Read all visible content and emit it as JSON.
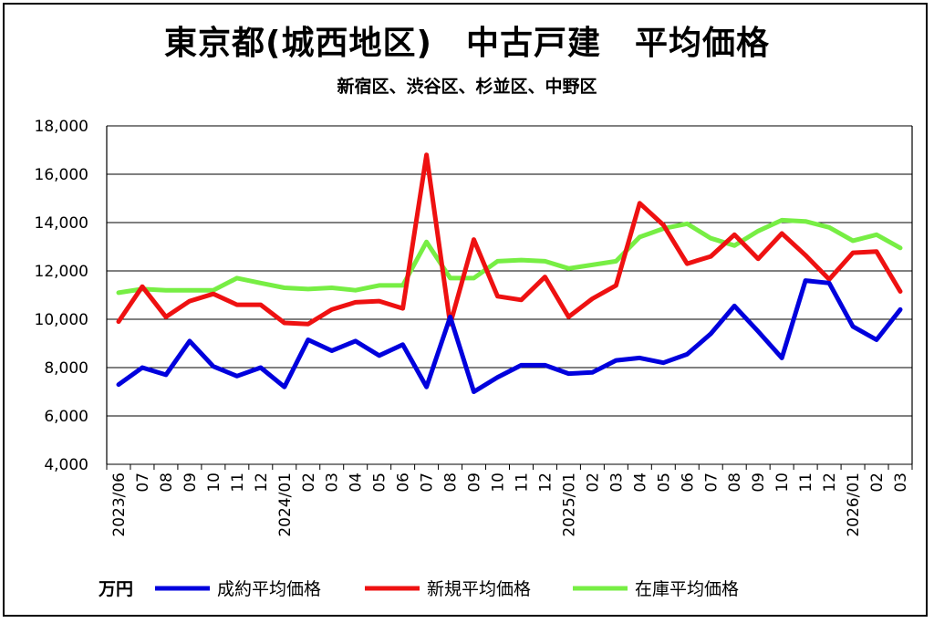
{
  "chart_data": {
    "type": "line",
    "title": "東京都(城西地区)　中古戸建　平均価格",
    "subtitle": "新宿区、渋谷区、杉並区、中野区",
    "unit": "万円",
    "ylim": [
      4000,
      18000
    ],
    "yticks": [
      4000,
      6000,
      8000,
      10000,
      12000,
      14000,
      16000,
      18000
    ],
    "ytick_labels": [
      "4,000",
      "6,000",
      "8,000",
      "10,000",
      "12,000",
      "14,000",
      "16,000",
      "18,000"
    ],
    "grid": true,
    "legend_position": "bottom",
    "x": [
      "2023/06",
      "07",
      "08",
      "09",
      "10",
      "11",
      "12",
      "2024/01",
      "02",
      "03",
      "04",
      "05",
      "06",
      "07",
      "08",
      "09",
      "10",
      "11",
      "12",
      "2025/01",
      "02",
      "03",
      "04",
      "05",
      "06",
      "07",
      "08",
      "09",
      "10",
      "11",
      "12",
      "2026/01",
      "02",
      "03"
    ],
    "series": [
      {
        "name": "成約平均価格",
        "color": "#0000dd",
        "values": [
          7300,
          8000,
          7700,
          9100,
          8050,
          7650,
          8000,
          7200,
          9150,
          8700,
          9100,
          8500,
          8950,
          7200,
          10100,
          7000,
          7600,
          8100,
          8100,
          7750,
          7800,
          8300,
          8400,
          8200,
          8550,
          9400,
          10550,
          9500,
          8400,
          11600,
          11500,
          9700,
          9150,
          10400
        ]
      },
      {
        "name": "新規平均価格",
        "color": "#ee1111",
        "values": [
          9900,
          11350,
          10100,
          10750,
          11050,
          10600,
          10600,
          9850,
          9800,
          10400,
          10700,
          10750,
          10450,
          16800,
          9800,
          13300,
          10950,
          10800,
          11750,
          10100,
          10850,
          11400,
          14800,
          13900,
          12300,
          12600,
          13500,
          12500,
          13550,
          12650,
          11650,
          12750,
          12800,
          11150
        ]
      },
      {
        "name": "在庫平均価格",
        "color": "#77ee44",
        "values": [
          11100,
          11250,
          11200,
          11200,
          11200,
          11700,
          11500,
          11300,
          11250,
          11300,
          11200,
          11400,
          11400,
          13200,
          11700,
          11700,
          12400,
          12450,
          12400,
          12100,
          12250,
          12400,
          13400,
          13750,
          13950,
          13350,
          13050,
          13650,
          14100,
          14050,
          13800,
          13250,
          13500,
          12950
        ]
      }
    ]
  }
}
